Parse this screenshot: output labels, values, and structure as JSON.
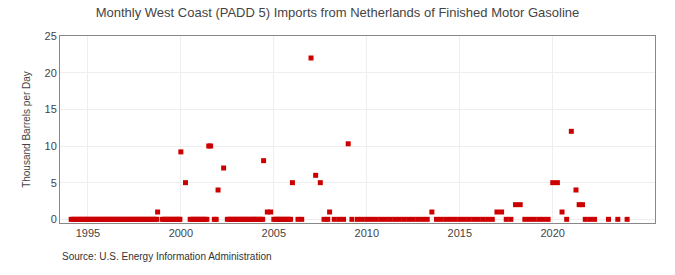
{
  "chart_data": {
    "type": "scatter",
    "title": "Monthly West Coast (PADD 5) Imports from Netherlands of Finished Motor Gasoline",
    "ylabel": "Thousand Barrels per Day",
    "annotations": [
      "Source: U.S. Energy Information Administration"
    ],
    "color": "#cc0000",
    "marker": "square",
    "grid": true,
    "xlim": [
      1993.5,
      2025.5
    ],
    "ylim": [
      -0.5,
      25
    ],
    "xticks": [
      1995,
      2000,
      2005,
      2010,
      2015,
      2020
    ],
    "yticks": [
      0,
      5,
      10,
      15,
      20,
      25
    ],
    "x": [
      1994.1,
      1994.2,
      1994.3,
      1994.4,
      1994.5,
      1994.6,
      1994.7,
      1994.8,
      1994.9,
      1995.0,
      1995.1,
      1995.2,
      1995.3,
      1995.4,
      1995.5,
      1995.6,
      1995.7,
      1995.8,
      1995.9,
      1996.0,
      1996.1,
      1996.2,
      1996.3,
      1996.4,
      1996.5,
      1996.6,
      1996.7,
      1996.8,
      1996.9,
      1997.0,
      1997.1,
      1997.2,
      1997.3,
      1997.4,
      1997.5,
      1997.6,
      1997.7,
      1997.8,
      1997.9,
      1998.0,
      1998.1,
      1998.2,
      1998.3,
      1998.4,
      1998.5,
      1998.6,
      1998.7,
      1998.75,
      1999.0,
      1999.1,
      1999.2,
      1999.3,
      1999.4,
      1999.5,
      1999.6,
      1999.7,
      1999.8,
      1999.9,
      1999.95,
      2000.0,
      2000.25,
      2000.5,
      2000.6,
      2000.7,
      2000.8,
      2000.9,
      2001.0,
      2001.1,
      2001.2,
      2001.3,
      2001.4,
      2001.5,
      2001.6,
      2001.8,
      2001.9,
      2002.0,
      2002.3,
      2002.5,
      2002.6,
      2002.7,
      2002.8,
      2002.9,
      2003.0,
      2003.1,
      2003.2,
      2003.3,
      2003.4,
      2003.5,
      2003.6,
      2003.7,
      2003.8,
      2003.9,
      2004.0,
      2004.1,
      2004.2,
      2004.3,
      2004.4,
      2004.45,
      2004.65,
      2004.83,
      2005.0,
      2005.1,
      2005.2,
      2005.3,
      2005.4,
      2005.5,
      2005.6,
      2005.7,
      2005.8,
      2005.9,
      2006.0,
      2006.3,
      2006.5,
      2007.0,
      2007.25,
      2007.5,
      2007.7,
      2007.9,
      2008.0,
      2008.25,
      2008.5,
      2008.75,
      2009.0,
      2009.2,
      2009.5,
      2009.75,
      2010.0,
      2010.25,
      2010.5,
      2010.75,
      2011.0,
      2011.25,
      2011.5,
      2011.75,
      2012.0,
      2012.25,
      2012.5,
      2012.75,
      2013.0,
      2013.25,
      2013.5,
      2013.75,
      2014.0,
      2014.25,
      2014.5,
      2014.75,
      2015.0,
      2015.25,
      2015.5,
      2015.75,
      2016.0,
      2016.25,
      2016.5,
      2016.75,
      2017.0,
      2017.25,
      2017.5,
      2017.75,
      2018.0,
      2018.25,
      2018.5,
      2018.75,
      2019.0,
      2019.25,
      2019.5,
      2019.75,
      2020.0,
      2020.25,
      2020.5,
      2020.75,
      2021.0,
      2021.25,
      2021.42,
      2021.6,
      2021.75,
      2022.0,
      2022.25,
      2023.0,
      2023.5,
      2024.0
    ],
    "values": [
      0,
      0,
      0,
      0,
      0,
      0,
      0,
      0,
      0,
      0,
      0,
      0,
      0,
      0,
      0,
      0,
      0,
      0,
      0,
      0,
      0,
      0,
      0,
      0,
      0,
      0,
      0,
      0,
      0,
      0,
      0,
      0,
      0,
      0,
      0,
      0,
      0,
      0,
      0,
      0,
      0,
      0,
      0,
      0,
      0,
      0,
      0,
      1,
      0,
      0,
      0,
      0,
      0,
      0,
      0,
      0,
      0,
      0,
      0,
      9.2,
      5,
      0,
      0,
      0,
      0,
      0,
      0,
      0,
      0,
      0,
      0,
      10,
      10,
      0,
      0,
      4,
      7,
      0,
      0,
      0,
      0,
      0,
      0,
      0,
      0,
      0,
      0,
      0,
      0,
      0,
      0,
      0,
      0,
      0,
      0,
      0,
      0,
      8,
      1,
      1,
      0,
      0,
      0,
      0,
      0,
      0,
      0,
      0,
      0,
      0,
      5,
      0,
      0,
      22,
      6,
      5,
      0,
      0,
      1,
      0,
      0,
      0,
      10.3,
      0,
      0,
      0,
      0,
      0,
      0,
      0,
      0,
      0,
      0,
      0,
      0,
      0,
      0,
      0,
      0,
      0,
      1,
      0,
      0,
      0,
      0,
      0,
      0,
      0,
      0,
      0,
      0,
      0,
      0,
      0,
      1,
      1,
      0,
      0,
      2,
      2,
      0,
      0,
      0,
      0,
      0,
      0,
      5,
      5,
      1,
      0,
      12,
      4,
      2,
      2,
      0,
      0,
      0,
      0,
      0,
      0
    ]
  }
}
